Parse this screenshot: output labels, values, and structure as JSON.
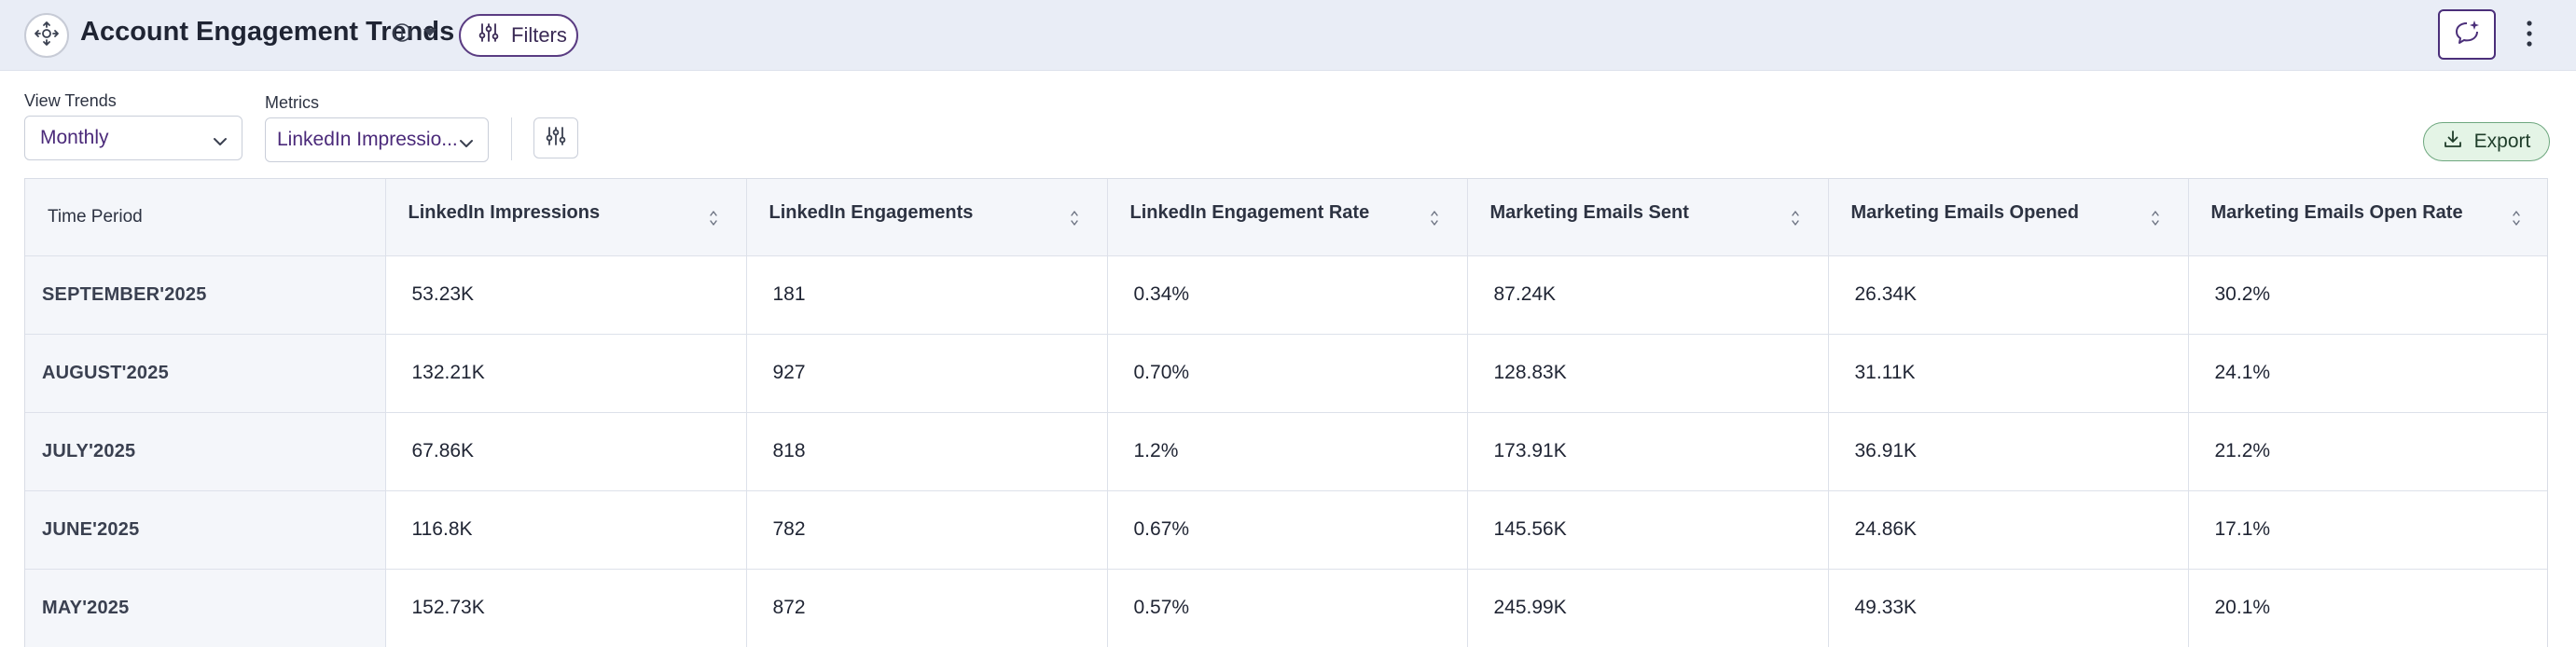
{
  "header": {
    "title": "Account Engagement Trends",
    "filters_label": "Filters"
  },
  "controls": {
    "view_trends_label": "View Trends",
    "view_trends_value": "Monthly",
    "metrics_label": "Metrics",
    "metrics_value": "LinkedIn Impressio...",
    "export_label": "Export"
  },
  "table": {
    "columns": [
      "Time Period",
      "LinkedIn Impressions",
      "LinkedIn Engagements",
      "LinkedIn Engagement Rate",
      "Marketing Emails Sent",
      "Marketing Emails Opened",
      "Marketing Emails Open Rate"
    ],
    "rows": [
      [
        "SEPTEMBER'2025",
        "53.23K",
        "181",
        "0.34%",
        "87.24K",
        "26.34K",
        "30.2%"
      ],
      [
        "AUGUST'2025",
        "132.21K",
        "927",
        "0.70%",
        "128.83K",
        "31.11K",
        "24.1%"
      ],
      [
        "JULY'2025",
        "67.86K",
        "818",
        "1.2%",
        "173.91K",
        "36.91K",
        "21.2%"
      ],
      [
        "JUNE'2025",
        "116.8K",
        "782",
        "0.67%",
        "145.56K",
        "24.86K",
        "17.1%"
      ],
      [
        "MAY'2025",
        "152.73K",
        "872",
        "0.57%",
        "245.99K",
        "49.33K",
        "20.1%"
      ]
    ]
  },
  "colors": {
    "header_bg": "#e9edf6",
    "accent_purple": "#4b2f7a",
    "export_bg": "#e4f4e6",
    "export_border": "#6ea77f"
  },
  "icons": {
    "app": "move-arrows-icon",
    "info": "info-icon",
    "caret": "caret-down-icon",
    "filters": "sliders-icon",
    "assistant": "chat-sparkle-icon",
    "more": "more-vertical-icon",
    "tune": "tune-icon",
    "export": "download-icon",
    "sort": "sort-icon"
  }
}
